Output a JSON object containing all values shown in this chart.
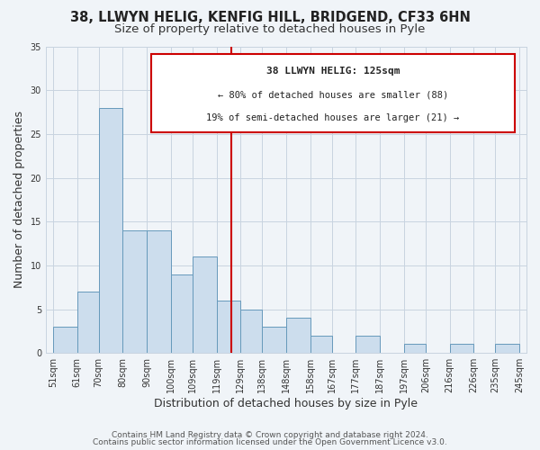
{
  "title_line1": "38, LLWYN HELIG, KENFIG HILL, BRIDGEND, CF33 6HN",
  "title_line2": "Size of property relative to detached houses in Pyle",
  "xlabel": "Distribution of detached houses by size in Pyle",
  "ylabel": "Number of detached properties",
  "bar_left_edges": [
    51,
    61,
    70,
    80,
    90,
    100,
    109,
    119,
    129,
    138,
    148,
    158,
    167,
    177,
    187,
    197,
    206,
    216,
    226,
    235
  ],
  "bar_widths": [
    10,
    9,
    10,
    10,
    10,
    9,
    10,
    10,
    9,
    10,
    10,
    9,
    10,
    10,
    10,
    9,
    10,
    10,
    9,
    10
  ],
  "bar_heights": [
    3,
    7,
    28,
    14,
    14,
    9,
    11,
    6,
    5,
    3,
    4,
    2,
    0,
    2,
    0,
    1,
    0,
    1,
    0,
    1
  ],
  "bar_color": "#ccdded",
  "bar_edgecolor": "#6699bb",
  "ylim": [
    0,
    35
  ],
  "yticks": [
    0,
    5,
    10,
    15,
    20,
    25,
    30,
    35
  ],
  "xtick_labels": [
    "51sqm",
    "61sqm",
    "70sqm",
    "80sqm",
    "90sqm",
    "100sqm",
    "109sqm",
    "119sqm",
    "129sqm",
    "138sqm",
    "148sqm",
    "158sqm",
    "167sqm",
    "177sqm",
    "187sqm",
    "197sqm",
    "206sqm",
    "216sqm",
    "226sqm",
    "235sqm",
    "245sqm"
  ],
  "xtick_positions": [
    51,
    61,
    70,
    80,
    90,
    100,
    109,
    119,
    129,
    138,
    148,
    158,
    167,
    177,
    187,
    197,
    206,
    216,
    226,
    235,
    245
  ],
  "vline_x": 125,
  "vline_color": "#cc0000",
  "annotation_title": "38 LLWYN HELIG: 125sqm",
  "annotation_line1": "← 80% of detached houses are smaller (88)",
  "annotation_line2": "19% of semi-detached houses are larger (21) →",
  "footer_line1": "Contains HM Land Registry data © Crown copyright and database right 2024.",
  "footer_line2": "Contains public sector information licensed under the Open Government Licence v3.0.",
  "bg_color": "#f0f4f8",
  "grid_color": "#c8d4e0",
  "title_fontsize": 10.5,
  "subtitle_fontsize": 9.5,
  "axis_label_fontsize": 9,
  "tick_fontsize": 7,
  "footer_fontsize": 6.5
}
